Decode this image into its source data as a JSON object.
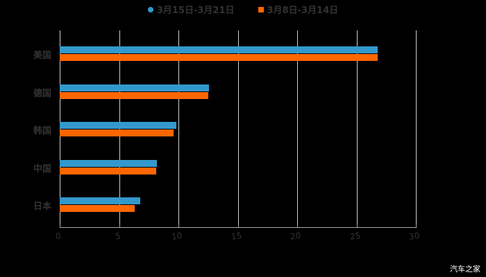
{
  "chart_data": {
    "type": "bar",
    "orientation": "horizontal",
    "title": "",
    "categories": [
      "美国",
      "德国",
      "韩国",
      "中国",
      "日本"
    ],
    "series": [
      {
        "name": "3月15日-3月21日",
        "color": "#3399cc",
        "values": [
          26.8,
          12.6,
          9.8,
          8.2,
          6.8
        ]
      },
      {
        "name": "3月8日-3月14日",
        "color": "#ff6600",
        "values": [
          26.8,
          12.5,
          9.6,
          8.1,
          6.3
        ]
      }
    ],
    "xlabel": "",
    "ylabel": "",
    "xlim": [
      0,
      30
    ],
    "xticks": [
      "0",
      "5",
      "10",
      "15",
      "20",
      "25",
      "30"
    ],
    "grid": true,
    "legend_position": "top"
  },
  "legend": {
    "series1": "3月15日-3月21日",
    "series2": "3月8日-3月14日"
  },
  "watermark": "汽车之家"
}
